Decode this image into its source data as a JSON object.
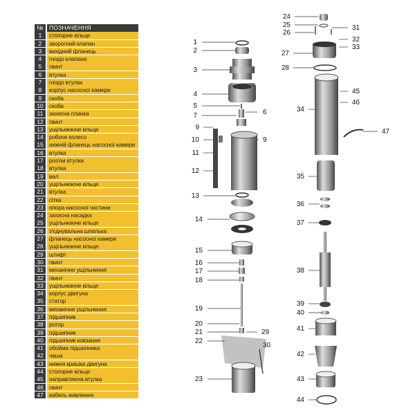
{
  "legend": {
    "header": {
      "num": "№",
      "label": "ПОЗНАЧЕННЯ"
    },
    "items": [
      {
        "num": "1",
        "label": "стопорне кільце"
      },
      {
        "num": "2",
        "label": "зворотний клапан"
      },
      {
        "num": "3",
        "label": "вихідний фланець"
      },
      {
        "num": "4",
        "label": "гніздо клапана"
      },
      {
        "num": "5",
        "label": "гвинт"
      },
      {
        "num": "6",
        "label": "втулка"
      },
      {
        "num": "7",
        "label": "гніздо втулки"
      },
      {
        "num": "8",
        "label": "корпус насосної камери"
      },
      {
        "num": "9",
        "label": "скоба"
      },
      {
        "num": "10",
        "label": "скоба"
      },
      {
        "num": "11",
        "label": "захисна планка"
      },
      {
        "num": "12",
        "label": "гвинт"
      },
      {
        "num": "13",
        "label": "ущільнююче кільце"
      },
      {
        "num": "14",
        "label": "робоче колесо"
      },
      {
        "num": "15",
        "label": "нижній фланець насосної камери"
      },
      {
        "num": "16",
        "label": "втулка"
      },
      {
        "num": "17",
        "label": "роз'єм втулки"
      },
      {
        "num": "18",
        "label": "втулка"
      },
      {
        "num": "19",
        "label": "вал"
      },
      {
        "num": "20",
        "label": "ущільнююче кільце"
      },
      {
        "num": "21",
        "label": "втулка"
      },
      {
        "num": "22",
        "label": "сітка"
      },
      {
        "num": "23",
        "label": "опора насосної частини"
      },
      {
        "num": "24",
        "label": "захисна насадка"
      },
      {
        "num": "25",
        "label": "ущільнююче кільце"
      },
      {
        "num": "26",
        "label": "з'єднувальна шпилька"
      },
      {
        "num": "27",
        "label": "фланець насосної камери"
      },
      {
        "num": "28",
        "label": "ущільнююче кільце"
      },
      {
        "num": "29",
        "label": "штифт"
      },
      {
        "num": "30",
        "label": "гвинт"
      },
      {
        "num": "31",
        "label": "механічне ущільнення"
      },
      {
        "num": "32",
        "label": "гвинт"
      },
      {
        "num": "33",
        "label": "ущільнююче кільце"
      },
      {
        "num": "34",
        "label": "корпус двигуна"
      },
      {
        "num": "35",
        "label": "статор"
      },
      {
        "num": "36",
        "label": "механічне ущільнення"
      },
      {
        "num": "37",
        "label": "підшипник"
      },
      {
        "num": "38",
        "label": "ротор"
      },
      {
        "num": "39",
        "label": "підшипник"
      },
      {
        "num": "40",
        "label": "підшипник ковзання"
      },
      {
        "num": "41",
        "label": "обойма підшипника"
      },
      {
        "num": "42",
        "label": "чаша"
      },
      {
        "num": "43",
        "label": "нижня кришка двигуна"
      },
      {
        "num": "44",
        "label": "стопорне кільце"
      },
      {
        "num": "45",
        "label": "направляюча втулка"
      },
      {
        "num": "46",
        "label": "гвинт"
      },
      {
        "num": "47",
        "label": "кабель живлення"
      }
    ]
  },
  "diagram": {
    "callouts": [
      "1",
      "2",
      "3",
      "4",
      "5",
      "6",
      "7",
      "9",
      "10",
      "9",
      "11",
      "12",
      "13",
      "14",
      "15",
      "16",
      "17",
      "18",
      "19",
      "20",
      "21",
      "29",
      "22",
      "30",
      "23",
      "24",
      "25",
      "26",
      "31",
      "32",
      "33",
      "27",
      "28",
      "45",
      "46",
      "34",
      "47",
      "35",
      "36",
      "37",
      "38",
      "39",
      "40",
      "41",
      "42",
      "43",
      "44"
    ]
  }
}
